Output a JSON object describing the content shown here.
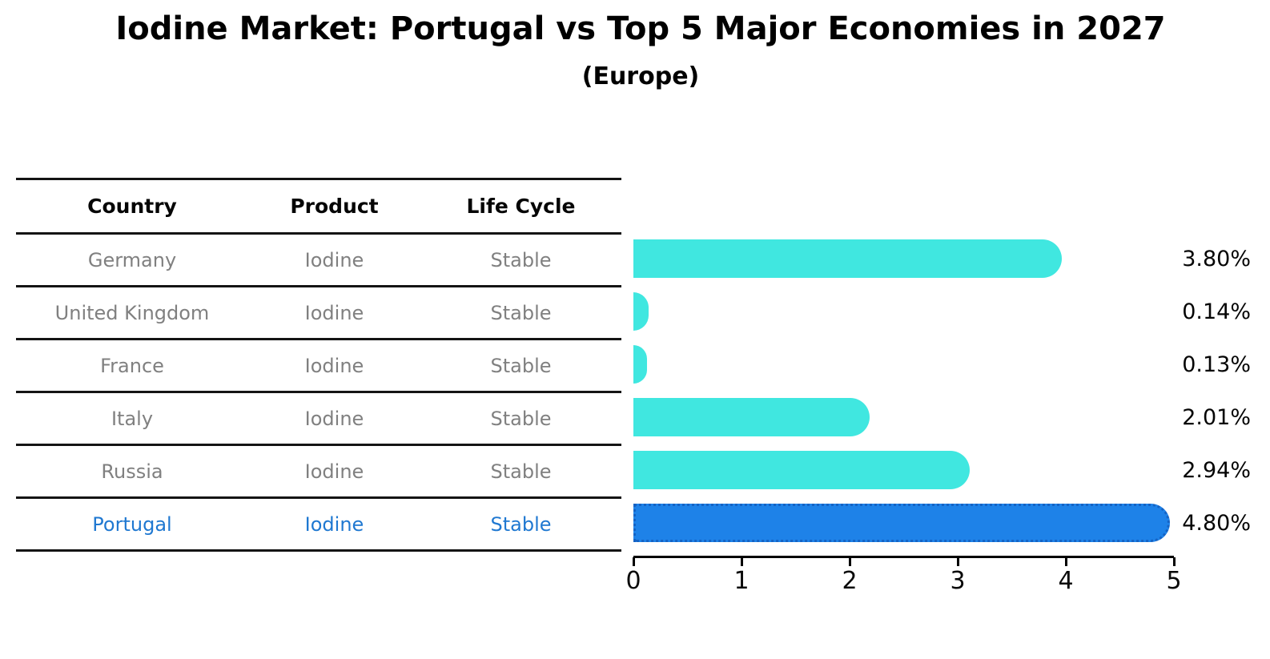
{
  "title": "Iodine Market: Portugal vs Top 5 Major Economies in 2027",
  "subtitle": "(Europe)",
  "table": {
    "headers": {
      "country": "Country",
      "product": "Product",
      "life_cycle": "Life Cycle"
    },
    "rows": [
      {
        "country": "Germany",
        "product": "Iodine",
        "life_cycle": "Stable",
        "highlight": false
      },
      {
        "country": "United Kingdom",
        "product": "Iodine",
        "life_cycle": "Stable",
        "highlight": false
      },
      {
        "country": "France",
        "product": "Iodine",
        "life_cycle": "Stable",
        "highlight": false
      },
      {
        "country": "Italy",
        "product": "Iodine",
        "life_cycle": "Stable",
        "highlight": false
      },
      {
        "country": "Russia",
        "product": "Iodine",
        "life_cycle": "Stable",
        "highlight": false
      },
      {
        "country": "Portugal",
        "product": "Iodine",
        "life_cycle": "Stable",
        "highlight": true
      }
    ]
  },
  "chart_data": {
    "type": "bar",
    "orientation": "horizontal",
    "title": "Iodine Market: Portugal vs Top 5 Major Economies in 2027",
    "subtitle": "(Europe)",
    "categories": [
      "Germany",
      "United Kingdom",
      "France",
      "Italy",
      "Russia",
      "Portugal"
    ],
    "values": [
      3.8,
      0.14,
      0.13,
      2.01,
      2.94,
      4.8
    ],
    "value_labels": [
      "3.80%",
      "0.14%",
      "0.13%",
      "2.01%",
      "2.94%",
      "4.80%"
    ],
    "xlim": [
      0,
      5
    ],
    "xticks": [
      "0",
      "1",
      "2",
      "3",
      "4",
      "5"
    ],
    "grid": false,
    "legend": "none",
    "highlight_index": 5
  },
  "colors": {
    "bar_color": "#40E7E0",
    "highlight_bar_color": "#1E82E8",
    "highlight_bar_border": "#1563C4",
    "highlight_text": "#1F78D1",
    "gray_text": "#808080",
    "axis_color": "#000000"
  }
}
